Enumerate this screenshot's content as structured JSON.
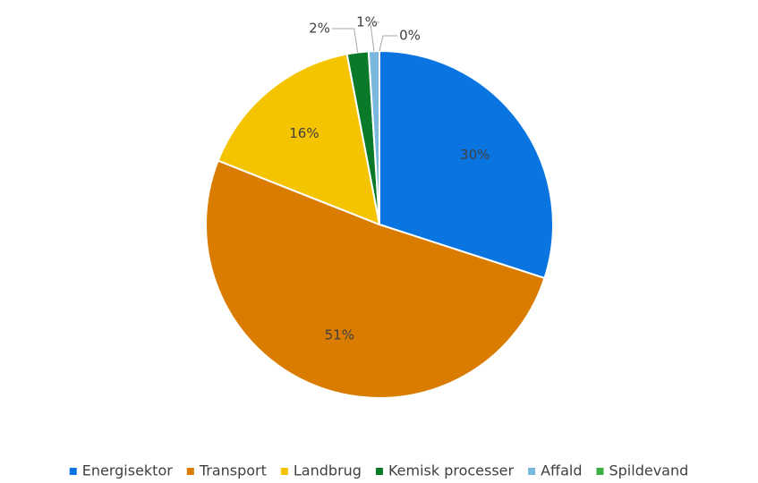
{
  "chart_data": {
    "type": "pie",
    "categories": [
      "Energisektor",
      "Transport",
      "Landbrug",
      "Kemisk processer",
      "Affald",
      "Spildevand"
    ],
    "values": [
      30,
      51,
      16,
      2,
      1,
      0
    ],
    "value_labels": [
      "30%",
      "51%",
      "16%",
      "2%",
      "1%",
      "0%"
    ],
    "colors": [
      "#0a74e0",
      "#d97c00",
      "#f5c400",
      "#0a7a2a",
      "#7ab8e0",
      "#3cb043"
    ],
    "legend": "bottom"
  }
}
